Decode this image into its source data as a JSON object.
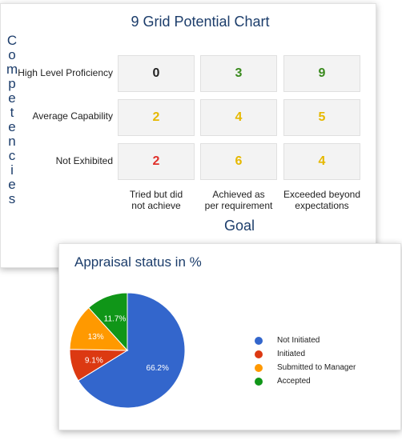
{
  "grid": {
    "title": "9 Grid Potential Chart",
    "y_axis_label": "Competencies",
    "x_axis_label": "Goal",
    "rows": [
      "High Level Proficiency",
      "Average Capability",
      "Not Exhibited"
    ],
    "columns": [
      [
        "Tried but did",
        "not achieve"
      ],
      [
        "Achieved as",
        "per requirement"
      ],
      [
        "Exceeded beyond",
        "expectations"
      ]
    ],
    "values": [
      [
        0,
        3,
        9
      ],
      [
        2,
        4,
        5
      ],
      [
        2,
        6,
        4
      ]
    ],
    "colors": [
      [
        "#222222",
        "#3a8a1e",
        "#3a8a1e"
      ],
      [
        "#e6b800",
        "#e6b800",
        "#e6b800"
      ],
      [
        "#e0302a",
        "#e6b800",
        "#e6b800"
      ]
    ]
  },
  "chart_data": {
    "type": "pie",
    "title": "Appraisal status in %",
    "slices": [
      {
        "name": "Not Initiated",
        "value": 66.2,
        "label": "66.2%",
        "color": "#3366cc"
      },
      {
        "name": "Initiated",
        "value": 9.1,
        "label": "9.1%",
        "color": "#dc3912"
      },
      {
        "name": "Submitted to Manager",
        "value": 13,
        "label": "13%",
        "color": "#ff9900"
      },
      {
        "name": "Accepted",
        "value": 11.7,
        "label": "11.7%",
        "color": "#109618"
      }
    ],
    "legend_position": "right"
  }
}
